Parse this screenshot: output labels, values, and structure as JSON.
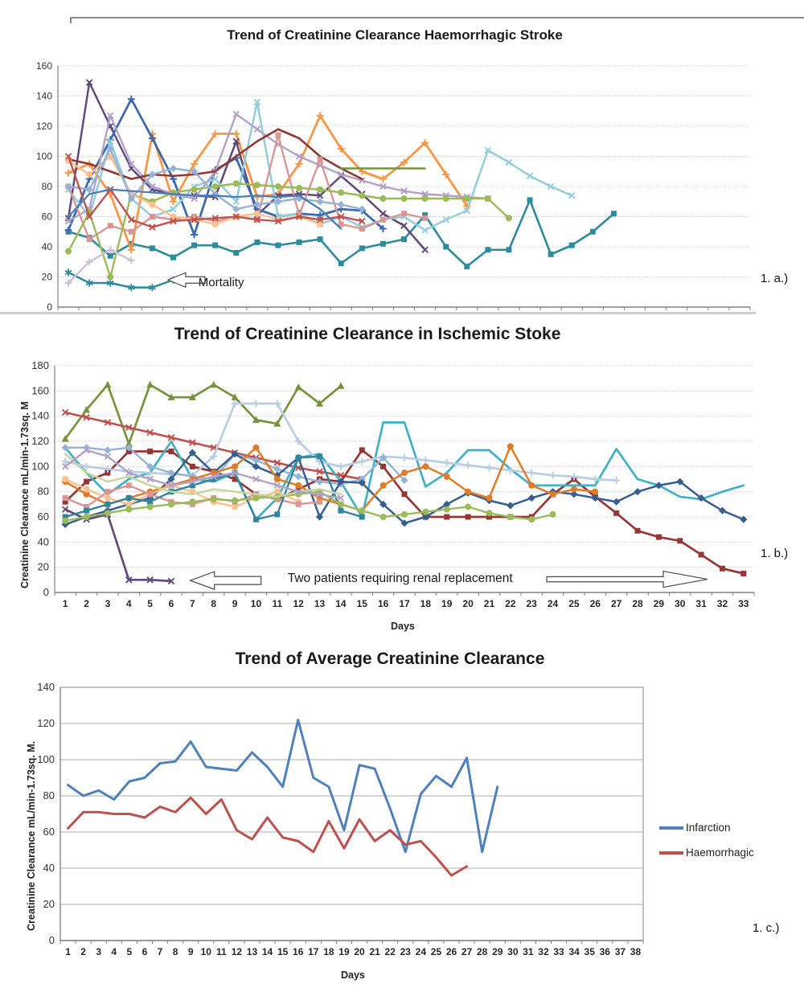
{
  "figure_labels": {
    "a": "1. a.)",
    "b": "1. b.)",
    "c": "1. c.)"
  },
  "chart_data": [
    {
      "type": "line",
      "title": "Trend of Creatinine Clearance Haemorrhagic Stroke",
      "side_label": "1. a.)",
      "y_axis": {
        "min": 0,
        "max": 160,
        "step": 20
      },
      "x_axis": {
        "slots": 33,
        "show_labels": false
      },
      "annotations": [
        {
          "text": "Mortality",
          "dir": "left",
          "day": 5.75,
          "value": 18,
          "len": 46,
          "hl": 22,
          "hh": 9,
          "sh": 4,
          "text_day": 7.2,
          "text_value": 16.6,
          "anchor": "start",
          "font": 15
        }
      ],
      "series": [
        {
          "name": "mortality",
          "color": "#2E8B9C",
          "marker": "asterisk",
          "lw": 2.5,
          "start_day": 1,
          "values": [
            23,
            16,
            16,
            13,
            13,
            18
          ]
        },
        {
          "name": "teal-squares",
          "color": "#2E8B9C",
          "marker": "square",
          "lw": 2.6,
          "start_day": 1,
          "values": [
            50,
            46,
            34,
            42,
            39,
            33,
            41,
            41,
            36,
            43,
            41,
            43,
            45,
            29,
            39,
            42,
            45,
            61,
            40,
            27,
            38,
            38,
            71,
            35,
            41,
            50,
            62
          ]
        },
        {
          "name": "orange-plus",
          "color": "#F79646",
          "marker": "plus",
          "lw": 2.8,
          "start_day": 1,
          "values": [
            89,
            95,
            75,
            38,
            115,
            70,
            95,
            115,
            115,
            73,
            75,
            95,
            127,
            105,
            90,
            85,
            96,
            109,
            88,
            67
          ]
        },
        {
          "name": "purple-x",
          "color": "#604A7B",
          "marker": "x",
          "lw": 2.5,
          "start_day": 1,
          "values": [
            59,
            149,
            120,
            92,
            78,
            75,
            74,
            73,
            110,
            61,
            74,
            75,
            74,
            87,
            75,
            62,
            54,
            38
          ]
        },
        {
          "name": "blue-plus",
          "color": "#3A6BB0",
          "marker": "plus",
          "lw": 2.8,
          "start_day": 1,
          "values": [
            51,
            85,
            111,
            138,
            112,
            85,
            48,
            91,
            99,
            65,
            60,
            62,
            61,
            65,
            64,
            52
          ]
        },
        {
          "name": "sky-x",
          "color": "#92CDDC",
          "marker": "x",
          "lw": 2.5,
          "start_day": 1,
          "values": [
            78,
            60,
            110,
            72,
            60,
            65,
            80,
            85,
            70,
            136,
            60,
            62,
            55,
            60,
            53,
            58,
            60,
            51,
            58,
            64,
            104,
            96,
            87,
            80,
            74
          ]
        },
        {
          "name": "lavender-x",
          "color": "#B2A1C7",
          "marker": "x",
          "lw": 2.4,
          "start_day": 1,
          "values": [
            57,
            65,
            127,
            95,
            80,
            75,
            72,
            90,
            128,
            118,
            108,
            100,
            94,
            88,
            84,
            80,
            77,
            75,
            74,
            73,
            72
          ]
        },
        {
          "name": "maroon-line",
          "color": "#943634",
          "marker": "none",
          "lw": 2.6,
          "start_day": 1,
          "values": [
            98,
            95,
            90,
            85,
            88,
            87,
            88,
            90,
            100,
            110,
            118,
            112,
            100,
            92,
            85
          ]
        },
        {
          "name": "salmon-squares",
          "color": "#D99694",
          "marker": "square",
          "lw": 2.4,
          "start_day": 1,
          "values": [
            80,
            45,
            54,
            50,
            60,
            58,
            60,
            57,
            60,
            58,
            114,
            61,
            98,
            55,
            52,
            58,
            62,
            59
          ]
        },
        {
          "name": "olive-circles",
          "color": "#9BBB59",
          "marker": "circle",
          "lw": 2.4,
          "start_day": 1,
          "values": [
            37,
            63,
            20,
            75,
            70,
            76,
            78,
            80,
            82,
            81,
            80,
            79,
            78,
            76,
            74,
            72,
            72,
            72,
            72,
            72,
            72,
            59
          ]
        },
        {
          "name": "khaki-flat",
          "color": "#77933C",
          "marker": "none",
          "lw": 2.6,
          "start_day": 14,
          "values": [
            92,
            92,
            92,
            92,
            92
          ]
        },
        {
          "name": "peach-circles",
          "color": "#FAC090",
          "marker": "circle",
          "lw": 2.4,
          "start_day": 1,
          "values": [
            97,
            88,
            100,
            75,
            68,
            60,
            58,
            55,
            60,
            62,
            58,
            60,
            55
          ]
        },
        {
          "name": "steel-diamonds",
          "color": "#95B3D7",
          "marker": "diamond",
          "lw": 2.4,
          "start_day": 1,
          "values": [
            80,
            78,
            105,
            72,
            88,
            92,
            90,
            75,
            65,
            68,
            70,
            72,
            70,
            68,
            65
          ]
        },
        {
          "name": "lavender-plus",
          "color": "#CCC1DA",
          "marker": "plus",
          "lw": 2.4,
          "start_day": 1,
          "values": [
            16,
            30,
            38,
            31
          ]
        },
        {
          "name": "crimson-x",
          "color": "#C0504D",
          "marker": "x",
          "lw": 2.3,
          "start_day": 1,
          "values": [
            100,
            60,
            78,
            58,
            53,
            57,
            58,
            59,
            60,
            58,
            57,
            60,
            58,
            60,
            57
          ]
        },
        {
          "name": "royal-flat",
          "color": "#4A7EBB",
          "marker": "none",
          "lw": 2.3,
          "start_day": 1,
          "values": [
            60,
            75,
            78,
            77,
            76,
            75,
            74,
            74,
            73,
            74,
            73,
            74,
            65,
            52
          ]
        }
      ]
    },
    {
      "type": "line",
      "title": "Trend of Creatinine Clearance in Ischemic Stoke",
      "side_label": "1. b.)",
      "y_label": "Creatinine Clearance mL/min-1.73sq. M",
      "x_label": "Days",
      "y_axis": {
        "min": 0,
        "max": 180,
        "step": 20
      },
      "x_axis": {
        "slots": 33,
        "show_labels": true,
        "start": 1
      },
      "annotations": [
        {
          "text": "Two patients requiring renal replacement",
          "dir": "left",
          "day": 6.9,
          "value": 9.5,
          "len": 88,
          "hl": 30,
          "hh": 11,
          "sh": 5,
          "text_day": 16.8,
          "text_value": 11.5,
          "anchor": "middle",
          "font": 15.5
        },
        {
          "text": "",
          "dir": "right",
          "day": 31.3,
          "value": 10.5,
          "len": 200,
          "hl": 55,
          "hh": 10,
          "sh": 3.2
        }
      ],
      "series": [
        {
          "name": "olive-triangles",
          "color": "#77933C",
          "marker": "triangle",
          "lw": 2.7,
          "start_day": 1,
          "values": [
            122,
            145,
            165,
            118,
            165,
            155,
            155,
            165,
            155,
            137,
            134,
            163,
            150,
            164
          ]
        },
        {
          "name": "crimson-x-decline",
          "color": "#C0504D",
          "marker": "x",
          "lw": 2.6,
          "start_day": 1,
          "values": [
            143,
            139,
            135,
            131,
            127,
            123,
            119,
            115,
            111,
            107,
            103,
            99,
            96,
            93,
            90
          ]
        },
        {
          "name": "purple-x-renal",
          "color": "#604A7B",
          "marker": "x",
          "lw": 2.7,
          "start_day": 1,
          "values": [
            66,
            58,
            62,
            10,
            10,
            9
          ]
        },
        {
          "name": "brick-squares-renal",
          "color": "#953735",
          "marker": "square",
          "lw": 2.7,
          "start_day": 1,
          "values": [
            72,
            88,
            95,
            112,
            112,
            112,
            100,
            96,
            90,
            78,
            74,
            82,
            90,
            88,
            113,
            100,
            78,
            60,
            60,
            60,
            60,
            60,
            60,
            78,
            90,
            76,
            63,
            49,
            44,
            41,
            30,
            19,
            15
          ]
        },
        {
          "name": "cyan-line",
          "color": "#3FB1C5",
          "marker": "none",
          "lw": 2.7,
          "start_day": 1,
          "values": [
            115,
            95,
            78,
            90,
            95,
            120,
            90,
            88,
            95,
            58,
            75,
            107,
            110,
            88,
            60,
            135,
            135,
            84,
            95,
            113,
            113,
            98,
            85,
            85,
            85,
            85,
            114,
            90,
            85,
            76,
            74,
            80,
            85
          ]
        },
        {
          "name": "pale-steel-plus",
          "color": "#B9CDE5",
          "marker": "plus",
          "lw": 2.7,
          "start_day": 1,
          "values": [
            104,
            100,
            98,
            96,
            95,
            94,
            93,
            108,
            150,
            150,
            150,
            120,
            104,
            100,
            104,
            108,
            107,
            105,
            103,
            101,
            99,
            97,
            95,
            93,
            92,
            90,
            89
          ]
        },
        {
          "name": "steel-diamonds",
          "color": "#95B3D7",
          "marker": "diamond",
          "lw": 2.4,
          "start_day": 1,
          "values": [
            115,
            115,
            113,
            115,
            100,
            95,
            92,
            90,
            110,
            105,
            98,
            92,
            88,
            86,
            90,
            107,
            89
          ]
        },
        {
          "name": "navy-diamonds",
          "color": "#365F91",
          "marker": "diamond",
          "lw": 2.5,
          "start_day": 1,
          "values": [
            54,
            60,
            65,
            70,
            75,
            90,
            111,
            95,
            110,
            100,
            93,
            107,
            60,
            88,
            87,
            70,
            55,
            60,
            70,
            79,
            73,
            69,
            75,
            80,
            78,
            75,
            72,
            80,
            85,
            88,
            75,
            65,
            58
          ]
        },
        {
          "name": "orange-circles",
          "color": "#E07C28",
          "marker": "circle",
          "lw": 2.5,
          "start_day": 1,
          "values": [
            88,
            78,
            70,
            75,
            80,
            85,
            90,
            95,
            100,
            115,
            90,
            85,
            75,
            70,
            65,
            85,
            95,
            100,
            92,
            80,
            75,
            116,
            85,
            78,
            82,
            80
          ]
        },
        {
          "name": "peach-circles",
          "color": "#FAC090",
          "marker": "circle",
          "lw": 2.4,
          "start_day": 1,
          "values": [
            90,
            82,
            75,
            70,
            78,
            85,
            80,
            72,
            68,
            75,
            80,
            72
          ]
        },
        {
          "name": "pink-squares",
          "color": "#D99694",
          "marker": "square",
          "lw": 2.4,
          "start_day": 1,
          "values": [
            75,
            68,
            80,
            85,
            78,
            72,
            70,
            75,
            72,
            78,
            74,
            70,
            72
          ]
        },
        {
          "name": "teal-squares",
          "color": "#31859C",
          "marker": "square",
          "lw": 2.4,
          "start_day": 1,
          "values": [
            60,
            65,
            70,
            75,
            72,
            80,
            85,
            90,
            95,
            58,
            62,
            107,
            108,
            65,
            60
          ]
        },
        {
          "name": "green-circles",
          "color": "#9BBB59",
          "marker": "circle",
          "lw": 2.4,
          "start_day": 1,
          "values": [
            57,
            60,
            63,
            66,
            68,
            70,
            72,
            74,
            73,
            75,
            76,
            78,
            80,
            70,
            65,
            60,
            62,
            64,
            66,
            68,
            63,
            60,
            58,
            62
          ]
        },
        {
          "name": "light-green-line",
          "color": "#C3D69B",
          "marker": "none",
          "lw": 2.4,
          "start_day": 1,
          "values": [
            110,
            95,
            88,
            92,
            85,
            80,
            78,
            82,
            80,
            78,
            76,
            80,
            82,
            78
          ]
        },
        {
          "name": "lavender-x",
          "color": "#B3A2C7",
          "marker": "x",
          "lw": 2.4,
          "start_day": 1,
          "values": [
            100,
            113,
            108,
            95,
            90,
            85,
            88,
            92,
            95,
            90,
            85,
            80,
            78,
            75
          ]
        }
      ]
    },
    {
      "type": "line",
      "title": "Trend of Average Creatinine Clearance",
      "side_label": "1. c.)",
      "y_label": "Creatinine Clearance mL/min-1.73sq. M.",
      "x_label": "Days",
      "y_axis": {
        "min": 0,
        "max": 140,
        "step": 20
      },
      "x_axis": {
        "slots": 38,
        "show_labels": true,
        "start": 1
      },
      "annotations": [],
      "series": [
        {
          "name": "Infarction",
          "color": "#4F81BD",
          "marker": "none",
          "lw": 3,
          "legend": true,
          "start_day": 1,
          "values": [
            86,
            80,
            83,
            78,
            88,
            90,
            98,
            99,
            110,
            96,
            95,
            94,
            104,
            96,
            85,
            122,
            90,
            85,
            61,
            97,
            95,
            73,
            49,
            81,
            91,
            85,
            101,
            49,
            85
          ]
        },
        {
          "name": "Haemorrhagic",
          "color": "#C0504D",
          "marker": "none",
          "lw": 3,
          "legend": true,
          "start_day": 1,
          "values": [
            62,
            71,
            71,
            70,
            70,
            68,
            74,
            71,
            79,
            70,
            78,
            61,
            56,
            68,
            57,
            55,
            49,
            66,
            51,
            67,
            55,
            61,
            53,
            55,
            46,
            36,
            41
          ]
        }
      ]
    }
  ]
}
